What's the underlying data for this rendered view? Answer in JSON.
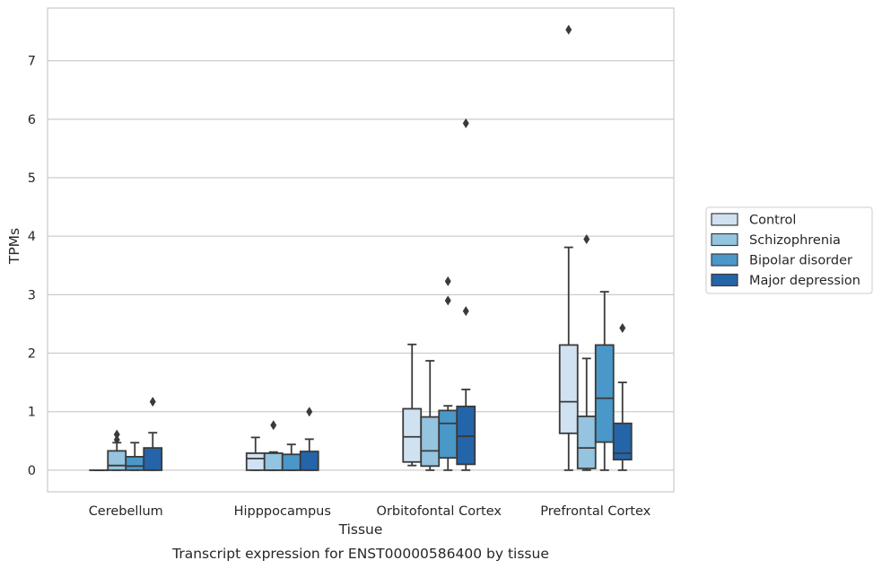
{
  "chart_data": {
    "type": "box",
    "title": "",
    "caption": "Transcript expression for ENST00000586400 by tissue",
    "xlabel": "Tissue",
    "ylabel": "TPMs",
    "ylim": [
      -0.37,
      7.9
    ],
    "yticks": [
      0,
      1,
      2,
      3,
      4,
      5,
      6,
      7
    ],
    "grid": "horizontal",
    "legend_position": "right",
    "categories": [
      "Cerebellum",
      "Hipppocampus",
      "Orbitofontal Cortex",
      "Prefrontal Cortex"
    ],
    "series": [
      {
        "name": "Control",
        "color": "#d0e1f2",
        "boxes": [
          {
            "whislo": 0,
            "q1": 0,
            "med": 0,
            "q3": 0,
            "whishi": 0,
            "fliers": []
          },
          {
            "whislo": 0,
            "q1": 0,
            "med": 0.2,
            "q3": 0.29,
            "whishi": 0.56,
            "fliers": []
          },
          {
            "whislo": 0.08,
            "q1": 0.14,
            "med": 0.57,
            "q3": 1.05,
            "whishi": 2.15,
            "fliers": []
          },
          {
            "whislo": 0,
            "q1": 0.63,
            "med": 1.17,
            "q3": 2.14,
            "whishi": 3.81,
            "fliers": [
              7.53
            ]
          }
        ]
      },
      {
        "name": "Schizophrenia",
        "color": "#94c4df",
        "boxes": [
          {
            "whislo": 0,
            "q1": 0,
            "med": 0.08,
            "q3": 0.33,
            "whishi": 0.47,
            "fliers": [
              0.52,
              0.61
            ]
          },
          {
            "whislo": 0,
            "q1": 0,
            "med": 0,
            "q3": 0.29,
            "whishi": 0.31,
            "fliers": [
              0.77
            ]
          },
          {
            "whislo": 0,
            "q1": 0.07,
            "med": 0.33,
            "q3": 0.91,
            "whishi": 1.87,
            "fliers": []
          },
          {
            "whislo": 0,
            "q1": 0.03,
            "med": 0.38,
            "q3": 0.92,
            "whishi": 1.91,
            "fliers": [
              3.95
            ]
          }
        ]
      },
      {
        "name": "Bipolar disorder",
        "color": "#4a98c9",
        "boxes": [
          {
            "whislo": 0,
            "q1": 0,
            "med": 0.07,
            "q3": 0.23,
            "whishi": 0.47,
            "fliers": []
          },
          {
            "whislo": 0,
            "q1": 0,
            "med": 0,
            "q3": 0.27,
            "whishi": 0.44,
            "fliers": []
          },
          {
            "whislo": 0,
            "q1": 0.21,
            "med": 0.8,
            "q3": 1.02,
            "whishi": 1.1,
            "fliers": [
              2.9,
              3.23
            ]
          },
          {
            "whislo": 0,
            "q1": 0.48,
            "med": 1.23,
            "q3": 2.14,
            "whishi": 3.05,
            "fliers": []
          }
        ]
      },
      {
        "name": "Major depression",
        "color": "#2464a9",
        "boxes": [
          {
            "whislo": 0,
            "q1": 0,
            "med": 0,
            "q3": 0.38,
            "whishi": 0.64,
            "fliers": [
              1.17
            ]
          },
          {
            "whislo": 0,
            "q1": 0,
            "med": 0,
            "q3": 0.32,
            "whishi": 0.53,
            "fliers": [
              1.0
            ]
          },
          {
            "whislo": 0,
            "q1": 0.1,
            "med": 0.58,
            "q3": 1.09,
            "whishi": 1.38,
            "fliers": [
              2.72,
              5.93
            ]
          },
          {
            "whislo": 0,
            "q1": 0.18,
            "med": 0.29,
            "q3": 0.8,
            "whishi": 1.5,
            "fliers": [
              2.43
            ]
          }
        ]
      }
    ]
  }
}
